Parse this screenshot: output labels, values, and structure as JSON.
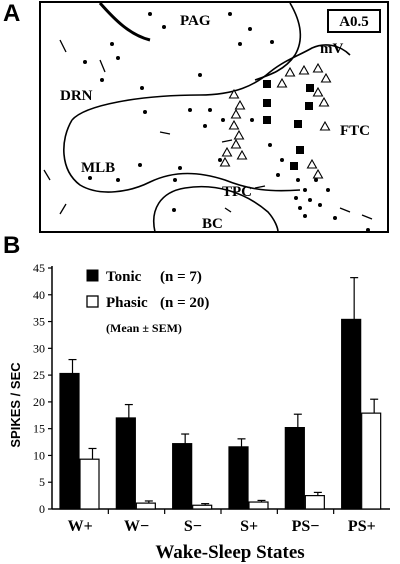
{
  "panel_a": {
    "letter": "A",
    "section_label": "A0.5",
    "regions": {
      "pag": "PAG",
      "drn": "DRN",
      "mlb": "MLB",
      "mv": "mV",
      "ftc": "FTC",
      "tpc": "TPC",
      "bc": "BC"
    }
  },
  "panel_b": {
    "letter": "B"
  },
  "chart_data": {
    "type": "bar",
    "title": "",
    "xlabel": "Wake-Sleep States",
    "ylabel": "SPIKES / SEC",
    "ylim": [
      0,
      45
    ],
    "yticks": [
      0,
      5,
      10,
      15,
      20,
      25,
      30,
      35,
      40,
      45
    ],
    "categories": [
      "W+",
      "W−",
      "S−",
      "S+",
      "PS−",
      "PS+"
    ],
    "series": [
      {
        "name": "Tonic",
        "legend_label": "Tonic",
        "legend_n": "(n = 7)",
        "color": "#000000",
        "values": [
          25.3,
          17.0,
          12.2,
          11.6,
          15.2,
          35.4
        ],
        "errors": [
          2.6,
          2.5,
          1.8,
          1.5,
          2.5,
          7.8
        ]
      },
      {
        "name": "Phasic",
        "legend_label": "Phasic",
        "legend_n": "(n = 20)",
        "color": "#ffffff",
        "values": [
          9.3,
          1.1,
          0.7,
          1.3,
          2.5,
          17.9
        ],
        "errors": [
          2.0,
          0.4,
          0.3,
          0.3,
          0.6,
          2.6
        ]
      }
    ],
    "note": "(Mean ± SEM)",
    "legend_position": "top-left",
    "grid": false
  }
}
